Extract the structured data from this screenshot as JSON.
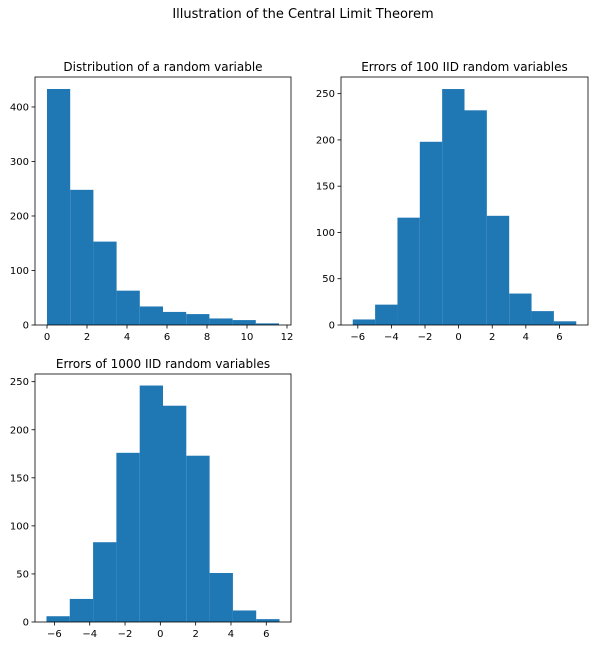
{
  "figure": {
    "suptitle": "Illustration of the Central Limit Theorem",
    "bar_color": "#1f77b4"
  },
  "chart_data": [
    {
      "type": "bar",
      "histogram": true,
      "title": "Distribution of a random variable",
      "xlabel": "",
      "ylabel": "",
      "bin_edges": [
        0.0,
        1.16,
        2.32,
        3.48,
        4.64,
        5.8,
        6.96,
        8.12,
        9.28,
        10.44,
        11.6
      ],
      "values": [
        433,
        248,
        153,
        63,
        34,
        24,
        20,
        12,
        9,
        3
      ],
      "xlim": [
        -0.6,
        12.2
      ],
      "ylim": [
        0,
        455
      ],
      "xticks": [
        0,
        2,
        4,
        6,
        8,
        10,
        12
      ],
      "yticks": [
        0,
        100,
        200,
        300,
        400
      ]
    },
    {
      "type": "bar",
      "histogram": true,
      "title": "Errors of 100 IID random variables",
      "xlabel": "",
      "ylabel": "",
      "bin_edges": [
        -6.3,
        -4.97,
        -3.64,
        -2.31,
        -0.98,
        0.35,
        1.68,
        3.01,
        4.34,
        5.67,
        7.0
      ],
      "values": [
        6,
        22,
        116,
        198,
        255,
        232,
        118,
        34,
        15,
        4
      ],
      "xlim": [
        -7.0,
        7.7
      ],
      "ylim": [
        0,
        268
      ],
      "xticks": [
        -6,
        -4,
        -2,
        0,
        2,
        4,
        6
      ],
      "yticks": [
        0,
        50,
        100,
        150,
        200,
        250
      ]
    },
    {
      "type": "bar",
      "histogram": true,
      "title": "Errors of 1000 IID random variables",
      "xlabel": "",
      "ylabel": "",
      "bin_edges": [
        -6.45,
        -5.13,
        -3.81,
        -2.49,
        -1.17,
        0.15,
        1.47,
        2.79,
        4.11,
        5.43,
        6.75
      ],
      "values": [
        6,
        24,
        83,
        176,
        246,
        225,
        173,
        51,
        12,
        3
      ],
      "xlim": [
        -7.1,
        7.4
      ],
      "ylim": [
        0,
        258
      ],
      "xticks": [
        -6,
        -4,
        -2,
        0,
        2,
        4,
        6
      ],
      "yticks": [
        0,
        50,
        100,
        150,
        200,
        250
      ]
    }
  ]
}
